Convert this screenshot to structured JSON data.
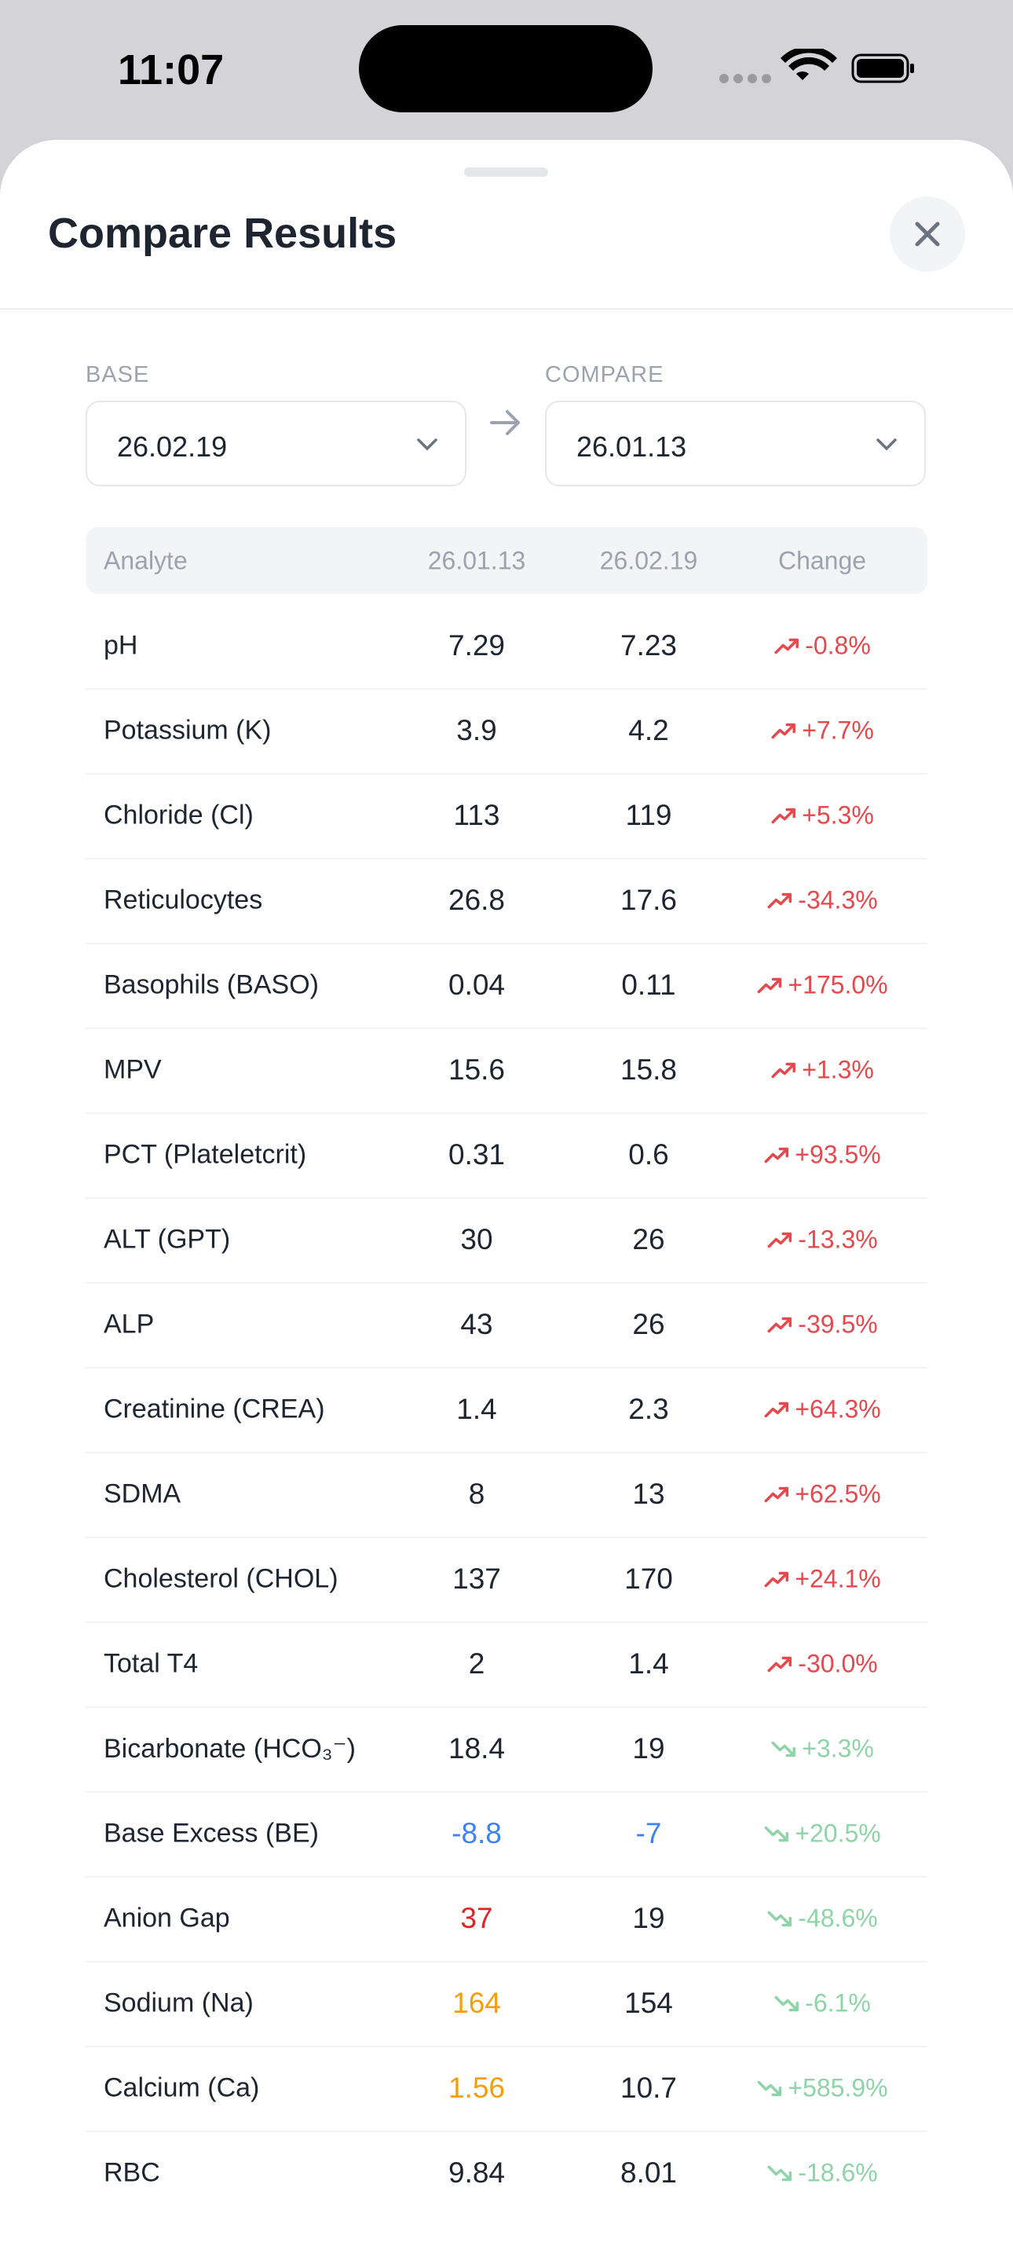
{
  "status_bar": {
    "time": "11:07"
  },
  "header": {
    "title": "Compare Results"
  },
  "selectors": [
    {
      "label": "BASE",
      "value": "26.02.19"
    },
    {
      "label": "COMPARE",
      "value": "26.01.13"
    }
  ],
  "table": {
    "columns": [
      "Analyte",
      "26.01.13",
      "26.02.19",
      "Change"
    ],
    "rows": [
      {
        "cells": [
          "pH",
          "7.29",
          "7.23",
          "-0.8%"
        ],
        "colors": [
          "#1e2430",
          "#1e2430",
          "#1e2430",
          "#e5484d"
        ],
        "trend": "up"
      },
      {
        "cells": [
          "Potassium (K)",
          "3.9",
          "4.2",
          "+7.7%"
        ],
        "colors": [
          "#1e2430",
          "#1e2430",
          "#1e2430",
          "#e5484d"
        ],
        "trend": "up"
      },
      {
        "cells": [
          "Chloride (Cl)",
          "113",
          "119",
          "+5.3%"
        ],
        "colors": [
          "#1e2430",
          "#1e2430",
          "#1e2430",
          "#e5484d"
        ],
        "trend": "up"
      },
      {
        "cells": [
          "Reticulocytes",
          "26.8",
          "17.6",
          "-34.3%"
        ],
        "colors": [
          "#1e2430",
          "#1e2430",
          "#1e2430",
          "#e5484d"
        ],
        "trend": "up"
      },
      {
        "cells": [
          "Basophils (BASO)",
          "0.04",
          "0.11",
          "+175.0%"
        ],
        "colors": [
          "#1e2430",
          "#1e2430",
          "#1e2430",
          "#e5484d"
        ],
        "trend": "up"
      },
      {
        "cells": [
          "MPV",
          "15.6",
          "15.8",
          "+1.3%"
        ],
        "colors": [
          "#1e2430",
          "#1e2430",
          "#1e2430",
          "#e5484d"
        ],
        "trend": "up"
      },
      {
        "cells": [
          "PCT (Plateletcrit)",
          "0.31",
          "0.6",
          "+93.5%"
        ],
        "colors": [
          "#1e2430",
          "#1e2430",
          "#1e2430",
          "#e5484d"
        ],
        "trend": "up"
      },
      {
        "cells": [
          "ALT (GPT)",
          "30",
          "26",
          "-13.3%"
        ],
        "colors": [
          "#1e2430",
          "#1e2430",
          "#1e2430",
          "#e5484d"
        ],
        "trend": "up"
      },
      {
        "cells": [
          "ALP",
          "43",
          "26",
          "-39.5%"
        ],
        "colors": [
          "#1e2430",
          "#1e2430",
          "#1e2430",
          "#e5484d"
        ],
        "trend": "up"
      },
      {
        "cells": [
          "Creatinine (CREA)",
          "1.4",
          "2.3",
          "+64.3%"
        ],
        "colors": [
          "#1e2430",
          "#1e2430",
          "#1e2430",
          "#e5484d"
        ],
        "trend": "up"
      },
      {
        "cells": [
          "SDMA",
          "8",
          "13",
          "+62.5%"
        ],
        "colors": [
          "#1e2430",
          "#1e2430",
          "#1e2430",
          "#e5484d"
        ],
        "trend": "up"
      },
      {
        "cells": [
          "Cholesterol (CHOL)",
          "137",
          "170",
          "+24.1%"
        ],
        "colors": [
          "#1e2430",
          "#1e2430",
          "#1e2430",
          "#e5484d"
        ],
        "trend": "up"
      },
      {
        "cells": [
          "Total T4",
          "2",
          "1.4",
          "-30.0%"
        ],
        "colors": [
          "#1e2430",
          "#1e2430",
          "#1e2430",
          "#e5484d"
        ],
        "trend": "up"
      },
      {
        "cells": [
          "Bicarbonate (HCO₃⁻)",
          "18.4",
          "19",
          "+3.3%"
        ],
        "colors": [
          "#1e2430",
          "#1e2430",
          "#1e2430",
          "#8fd3a8"
        ],
        "trend": "down"
      },
      {
        "cells": [
          "Base Excess (BE)",
          "-8.8",
          "-7",
          "+20.5%"
        ],
        "colors": [
          "#1e2430",
          "#3b82f6",
          "#3b82f6",
          "#8fd3a8"
        ],
        "trend": "down"
      },
      {
        "cells": [
          "Anion Gap",
          "37",
          "19",
          "-48.6%"
        ],
        "colors": [
          "#1e2430",
          "#dc2626",
          "#1e2430",
          "#8fd3a8"
        ],
        "trend": "down"
      },
      {
        "cells": [
          "Sodium (Na)",
          "164",
          "154",
          "-6.1%"
        ],
        "colors": [
          "#1e2430",
          "#f59e0b",
          "#1e2430",
          "#8fd3a8"
        ],
        "trend": "down"
      },
      {
        "cells": [
          "Calcium (Ca)",
          "1.56",
          "10.7",
          "+585.9%"
        ],
        "colors": [
          "#1e2430",
          "#f59e0b",
          "#1e2430",
          "#8fd3a8"
        ],
        "trend": "down"
      },
      {
        "cells": [
          "RBC",
          "9.84",
          "8.01",
          "-18.6%"
        ],
        "colors": [
          "#1e2430",
          "#1e2430",
          "#1e2430",
          "#8fd3a8"
        ],
        "trend": "down"
      }
    ]
  }
}
